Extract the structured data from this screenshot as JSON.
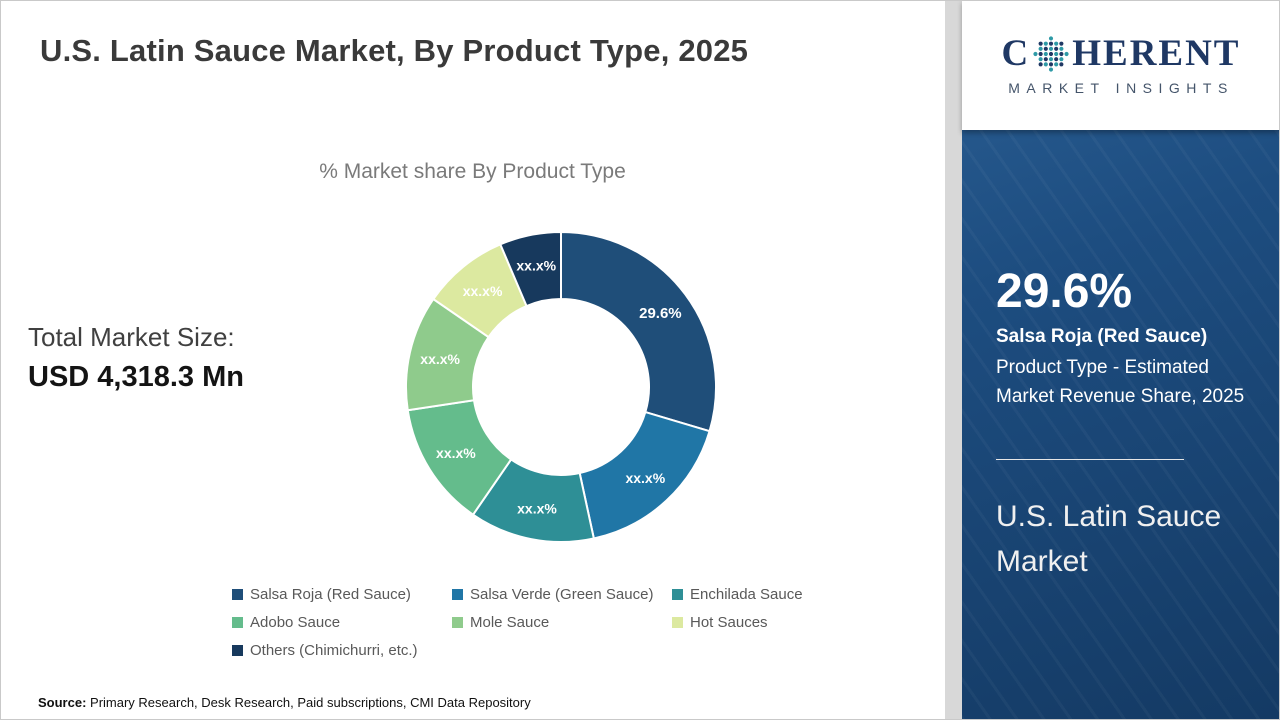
{
  "header": {
    "title": "U.S. Latin Sauce Market, By Product Type, 2025"
  },
  "logo": {
    "name_prefix": "C",
    "name_suffix": "HERENT",
    "tagline": "MARKET INSIGHTS",
    "navy": "#1F3864",
    "teal": "#2E9AA6"
  },
  "left_stats": {
    "label": "Total Market Size:",
    "value": "USD 4,318.3 Mn"
  },
  "chart_data": {
    "type": "pie",
    "subtype": "donut",
    "title": "% Market share By Product Type",
    "legend_position": "bottom",
    "segments": [
      {
        "label": "Salsa Roja (Red Sauce)",
        "value": 29.6,
        "display": "29.6%",
        "color": "#1F4E79"
      },
      {
        "label": "Salsa Verde (Green Sauce)",
        "value": 17.0,
        "display": "xx.x%",
        "color": "#2076A6"
      },
      {
        "label": "Enchilada Sauce",
        "value": 13.0,
        "display": "xx.x%",
        "color": "#2E8F96"
      },
      {
        "label": "Adobo Sauce",
        "value": 13.0,
        "display": "xx.x%",
        "color": "#64BC8C"
      },
      {
        "label": "Mole Sauce",
        "value": 12.0,
        "display": "xx.x%",
        "color": "#8FCB8C"
      },
      {
        "label": "Hot Sauces",
        "value": 9.0,
        "display": "xx.x%",
        "color": "#DCE9A0"
      },
      {
        "label": "Others (Chimichurri, etc.)",
        "value": 6.4,
        "display": "xx.x%",
        "color": "#17395D"
      }
    ]
  },
  "side_panel": {
    "background": "#1C4A7C",
    "highlight_value": "29.6%",
    "highlight_label": "Salsa Roja (Red Sauce)",
    "highlight_desc": "Product Type - Estimated Market Revenue Share, 2025",
    "market_name": "U.S. Latin Sauce Market"
  },
  "footer": {
    "source_label": "Source:",
    "source_text": " Primary Research, Desk Research, Paid subscriptions, CMI Data Repository"
  }
}
